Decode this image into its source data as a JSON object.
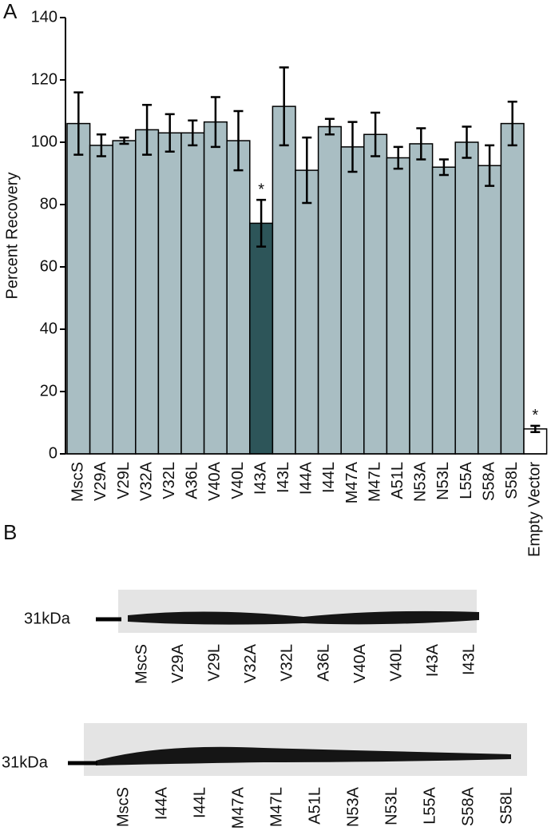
{
  "panel_a_label": "A",
  "chart_data": {
    "type": "bar",
    "ylabel": "Percent Recovery",
    "categories": [
      "MscS",
      "V29A",
      "V29L",
      "V32A",
      "V32L",
      "A36L",
      "V40A",
      "V40L",
      "I43A",
      "I43L",
      "I44A",
      "I44L",
      "M47A",
      "M47L",
      "A51L",
      "N53A",
      "N53L",
      "L55A",
      "S58A",
      "S58L",
      "Empty Vector"
    ],
    "values": [
      106,
      99,
      100.5,
      104,
      103,
      103,
      106.5,
      100.5,
      74,
      111.5,
      91,
      105,
      98.5,
      102.5,
      95,
      99.5,
      92,
      100,
      92.5,
      106,
      8
    ],
    "errors": [
      10,
      3.5,
      1,
      8,
      6,
      4,
      8,
      9.5,
      7.5,
      12.5,
      10.5,
      2.5,
      8,
      7,
      3.5,
      5,
      2.5,
      5,
      6.5,
      7,
      1
    ],
    "colors": [
      "#a9bec3",
      "#a9bec3",
      "#a9bec3",
      "#a9bec3",
      "#a9bec3",
      "#a9bec3",
      "#a9bec3",
      "#a9bec3",
      "#2d5559",
      "#a9bec3",
      "#a9bec3",
      "#a9bec3",
      "#a9bec3",
      "#a9bec3",
      "#a9bec3",
      "#a9bec3",
      "#a9bec3",
      "#a9bec3",
      "#a9bec3",
      "#a9bec3",
      "#ffffff"
    ],
    "annotations": [
      {
        "text": "*",
        "x": "I43A"
      },
      {
        "text": "*",
        "x": "Empty Vector"
      }
    ],
    "ylim": [
      0,
      140
    ],
    "yticks": [
      0,
      20,
      40,
      60,
      80,
      100,
      120,
      140
    ],
    "grid": false
  },
  "panel_b_label": "B",
  "blots": [
    {
      "marker": "31kDa",
      "lanes": [
        "MscS",
        "V29A",
        "V29L",
        "V32A",
        "V32L",
        "A36L",
        "V40A",
        "V40L",
        "I43A",
        "I43L"
      ]
    },
    {
      "marker": "31kDa",
      "lanes": [
        "MscS",
        "I44A",
        "I44L",
        "M47A",
        "M47L",
        "A51L",
        "N53A",
        "N53L",
        "L55A",
        "S58A",
        "S58L"
      ]
    }
  ]
}
